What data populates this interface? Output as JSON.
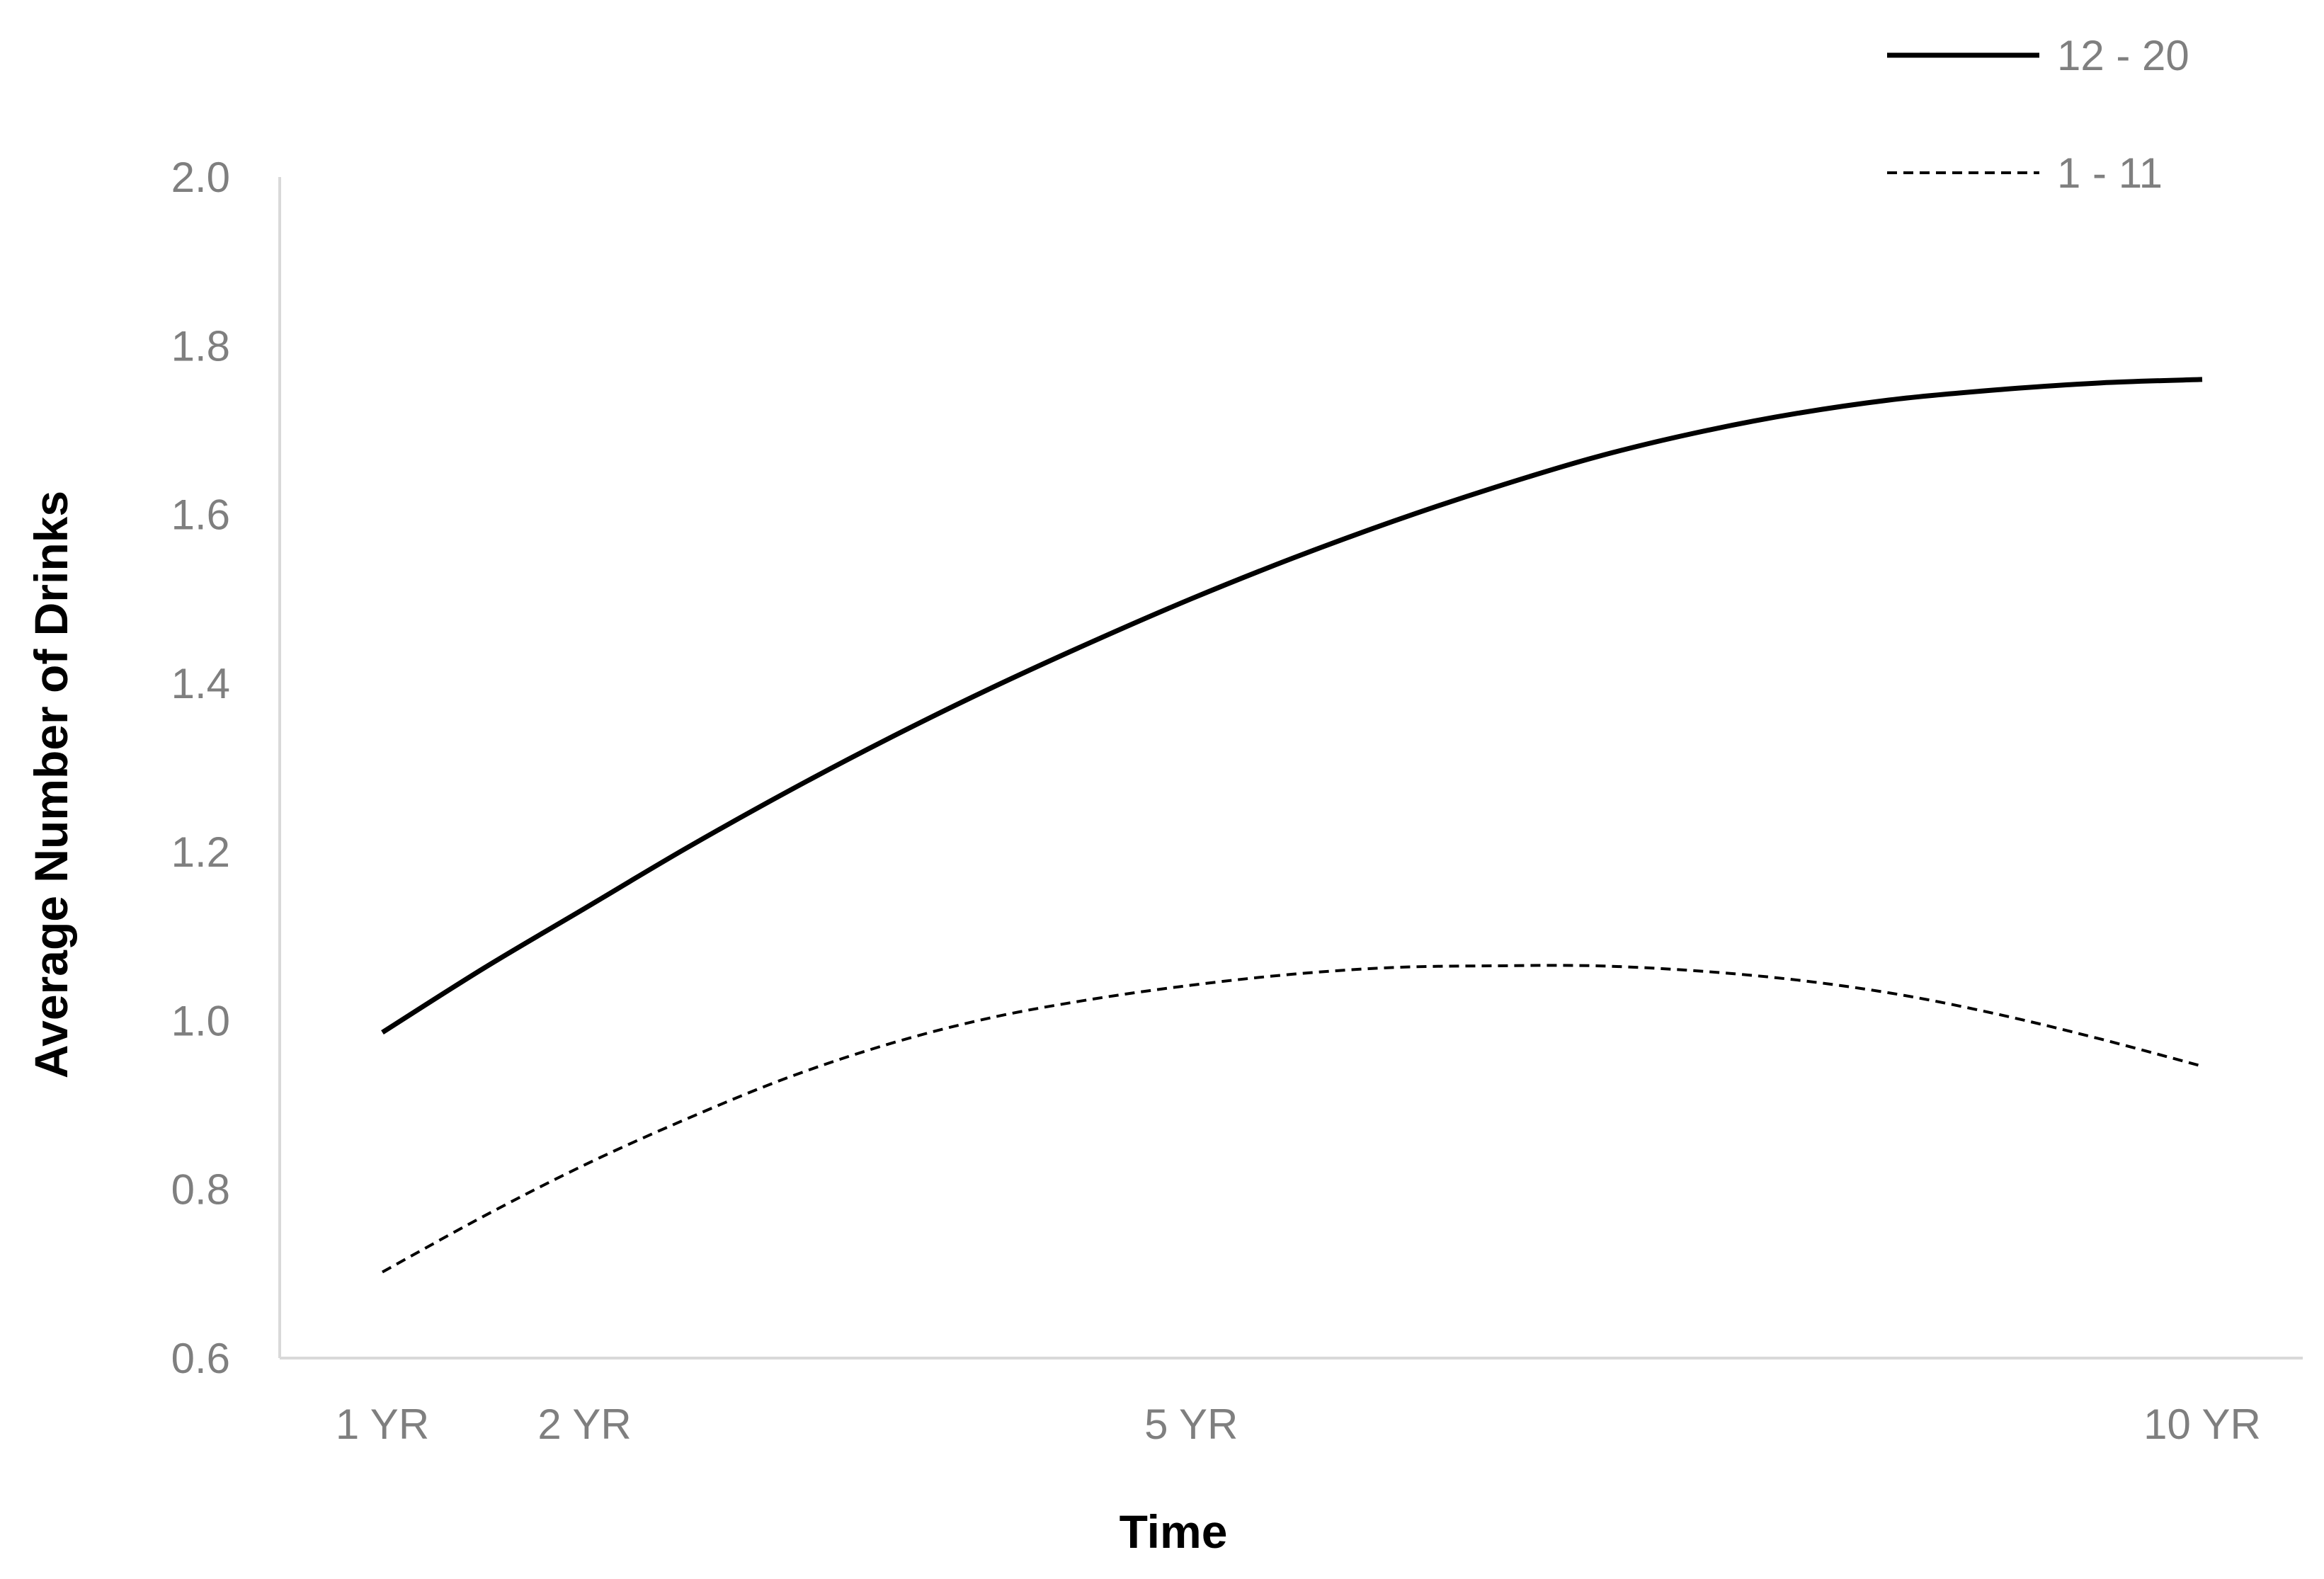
{
  "chart_data": {
    "type": "line",
    "title": "",
    "xlabel": "Time",
    "ylabel": "Average Number of Drinks",
    "ylim": [
      0.6,
      2.0
    ],
    "yticks": [
      "0.6",
      "0.8",
      "1.0",
      "1.2",
      "1.4",
      "1.6",
      "1.8",
      "2.0"
    ],
    "xticks": [
      {
        "label": "1 YR",
        "value": 1
      },
      {
        "label": "2 YR",
        "value": 2
      },
      {
        "label": "5 YR",
        "value": 5
      },
      {
        "label": "10 YR",
        "value": 10
      }
    ],
    "xlim": [
      0.5,
      11
    ],
    "grid": false,
    "legend_position": "top-right",
    "series": [
      {
        "name": "12 - 20",
        "style": "solid",
        "color": "#000000",
        "x": [
          1,
          1.5,
          2,
          2.5,
          3,
          3.5,
          4,
          4.5,
          5,
          5.5,
          6,
          6.5,
          7,
          7.5,
          8,
          8.5,
          9,
          9.5,
          10
        ],
        "y": [
          0.986,
          1.062,
          1.133,
          1.204,
          1.271,
          1.334,
          1.393,
          1.448,
          1.5,
          1.548,
          1.592,
          1.632,
          1.668,
          1.697,
          1.72,
          1.737,
          1.748,
          1.756,
          1.76
        ]
      },
      {
        "name": "1 - 11",
        "style": "dashed",
        "color": "#000000",
        "x": [
          1,
          1.5,
          2,
          2.5,
          3,
          3.5,
          4,
          4.5,
          5,
          5.5,
          6,
          6.5,
          7,
          7.5,
          8,
          8.5,
          9,
          9.5,
          10
        ],
        "y": [
          0.702,
          0.768,
          0.829,
          0.883,
          0.932,
          0.972,
          1.003,
          1.025,
          1.042,
          1.055,
          1.063,
          1.065,
          1.065,
          1.059,
          1.048,
          1.031,
          1.007,
          0.978,
          0.946
        ]
      }
    ]
  }
}
